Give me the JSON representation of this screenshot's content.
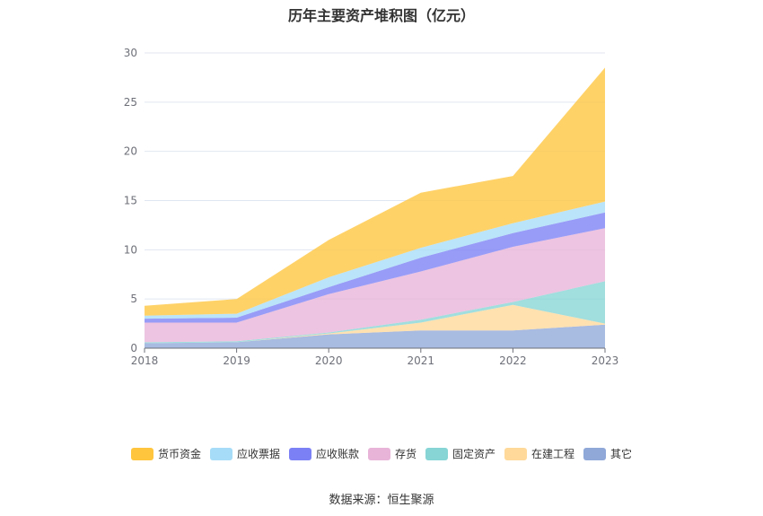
{
  "chart_data": {
    "type": "area",
    "title": "历年主要资产堆积图（亿元）",
    "x": [
      "2018",
      "2019",
      "2020",
      "2021",
      "2022",
      "2023"
    ],
    "ylim": [
      0,
      30
    ],
    "yticks": [
      0,
      5,
      10,
      15,
      20,
      25,
      30
    ],
    "stacked": true,
    "series": [
      {
        "name": "其它",
        "color": "#8fa8d8",
        "values": [
          0.5,
          0.6,
          1.4,
          1.8,
          1.8,
          2.4
        ]
      },
      {
        "name": "在建工程",
        "color": "#ffd99a",
        "values": [
          0.0,
          0.0,
          0.1,
          0.8,
          2.6,
          0.1
        ]
      },
      {
        "name": "固定资产",
        "color": "#87d5d5",
        "values": [
          0.1,
          0.1,
          0.1,
          0.3,
          0.3,
          4.3
        ]
      },
      {
        "name": "存货",
        "color": "#e8b4d8",
        "values": [
          2.0,
          1.9,
          3.9,
          4.9,
          5.6,
          5.4
        ]
      },
      {
        "name": "应收账款",
        "color": "#7b80f5",
        "values": [
          0.4,
          0.5,
          0.7,
          1.4,
          1.4,
          1.6
        ]
      },
      {
        "name": "应收票据",
        "color": "#a6dcf7",
        "values": [
          0.3,
          0.4,
          1.0,
          1.0,
          1.0,
          1.1
        ]
      },
      {
        "name": "货币资金",
        "color": "#ffc53d",
        "values": [
          1.0,
          1.5,
          3.8,
          5.6,
          4.8,
          13.6
        ]
      }
    ],
    "legend_order": [
      "货币资金",
      "应收票据",
      "应收账款",
      "存货",
      "固定资产",
      "在建工程",
      "其它"
    ],
    "grid": true,
    "legend_position": "bottom"
  },
  "source_text": "数据来源：恒生聚源"
}
